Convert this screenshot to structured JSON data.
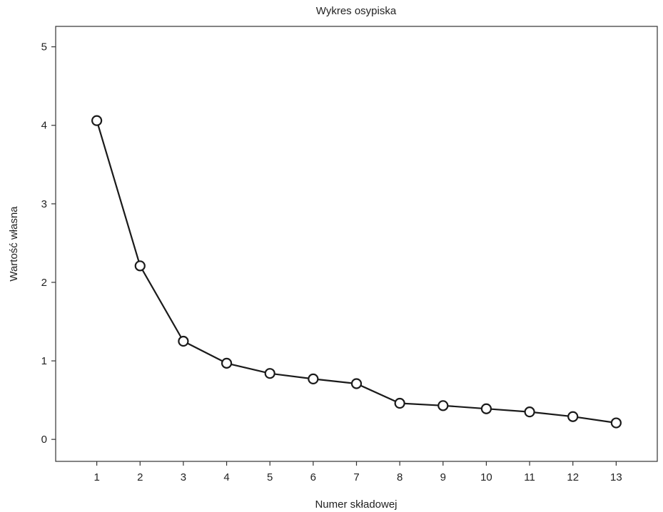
{
  "chart_data": {
    "type": "line",
    "title": "Wykres osypiska",
    "xlabel": "Numer składowej",
    "ylabel": "Wartość własna",
    "x": [
      1,
      2,
      3,
      4,
      5,
      6,
      7,
      8,
      9,
      10,
      11,
      12,
      13
    ],
    "series": [
      {
        "values": [
          4.06,
          2.21,
          1.25,
          0.97,
          0.84,
          0.77,
          0.71,
          0.46,
          0.43,
          0.39,
          0.35,
          0.29,
          0.21
        ]
      }
    ],
    "xlim": [
      0.05,
      13.95
    ],
    "ylim": [
      -0.28,
      5.26
    ],
    "xticks": [
      1,
      2,
      3,
      4,
      5,
      6,
      7,
      8,
      9,
      10,
      11,
      12,
      13
    ],
    "yticks": [
      0,
      1,
      2,
      3,
      4,
      5
    ],
    "grid": false,
    "marker": "open-circle",
    "colors": {
      "line": "#1a1a1a",
      "marker_fill": "#ffffff",
      "axis": "#333333"
    }
  }
}
